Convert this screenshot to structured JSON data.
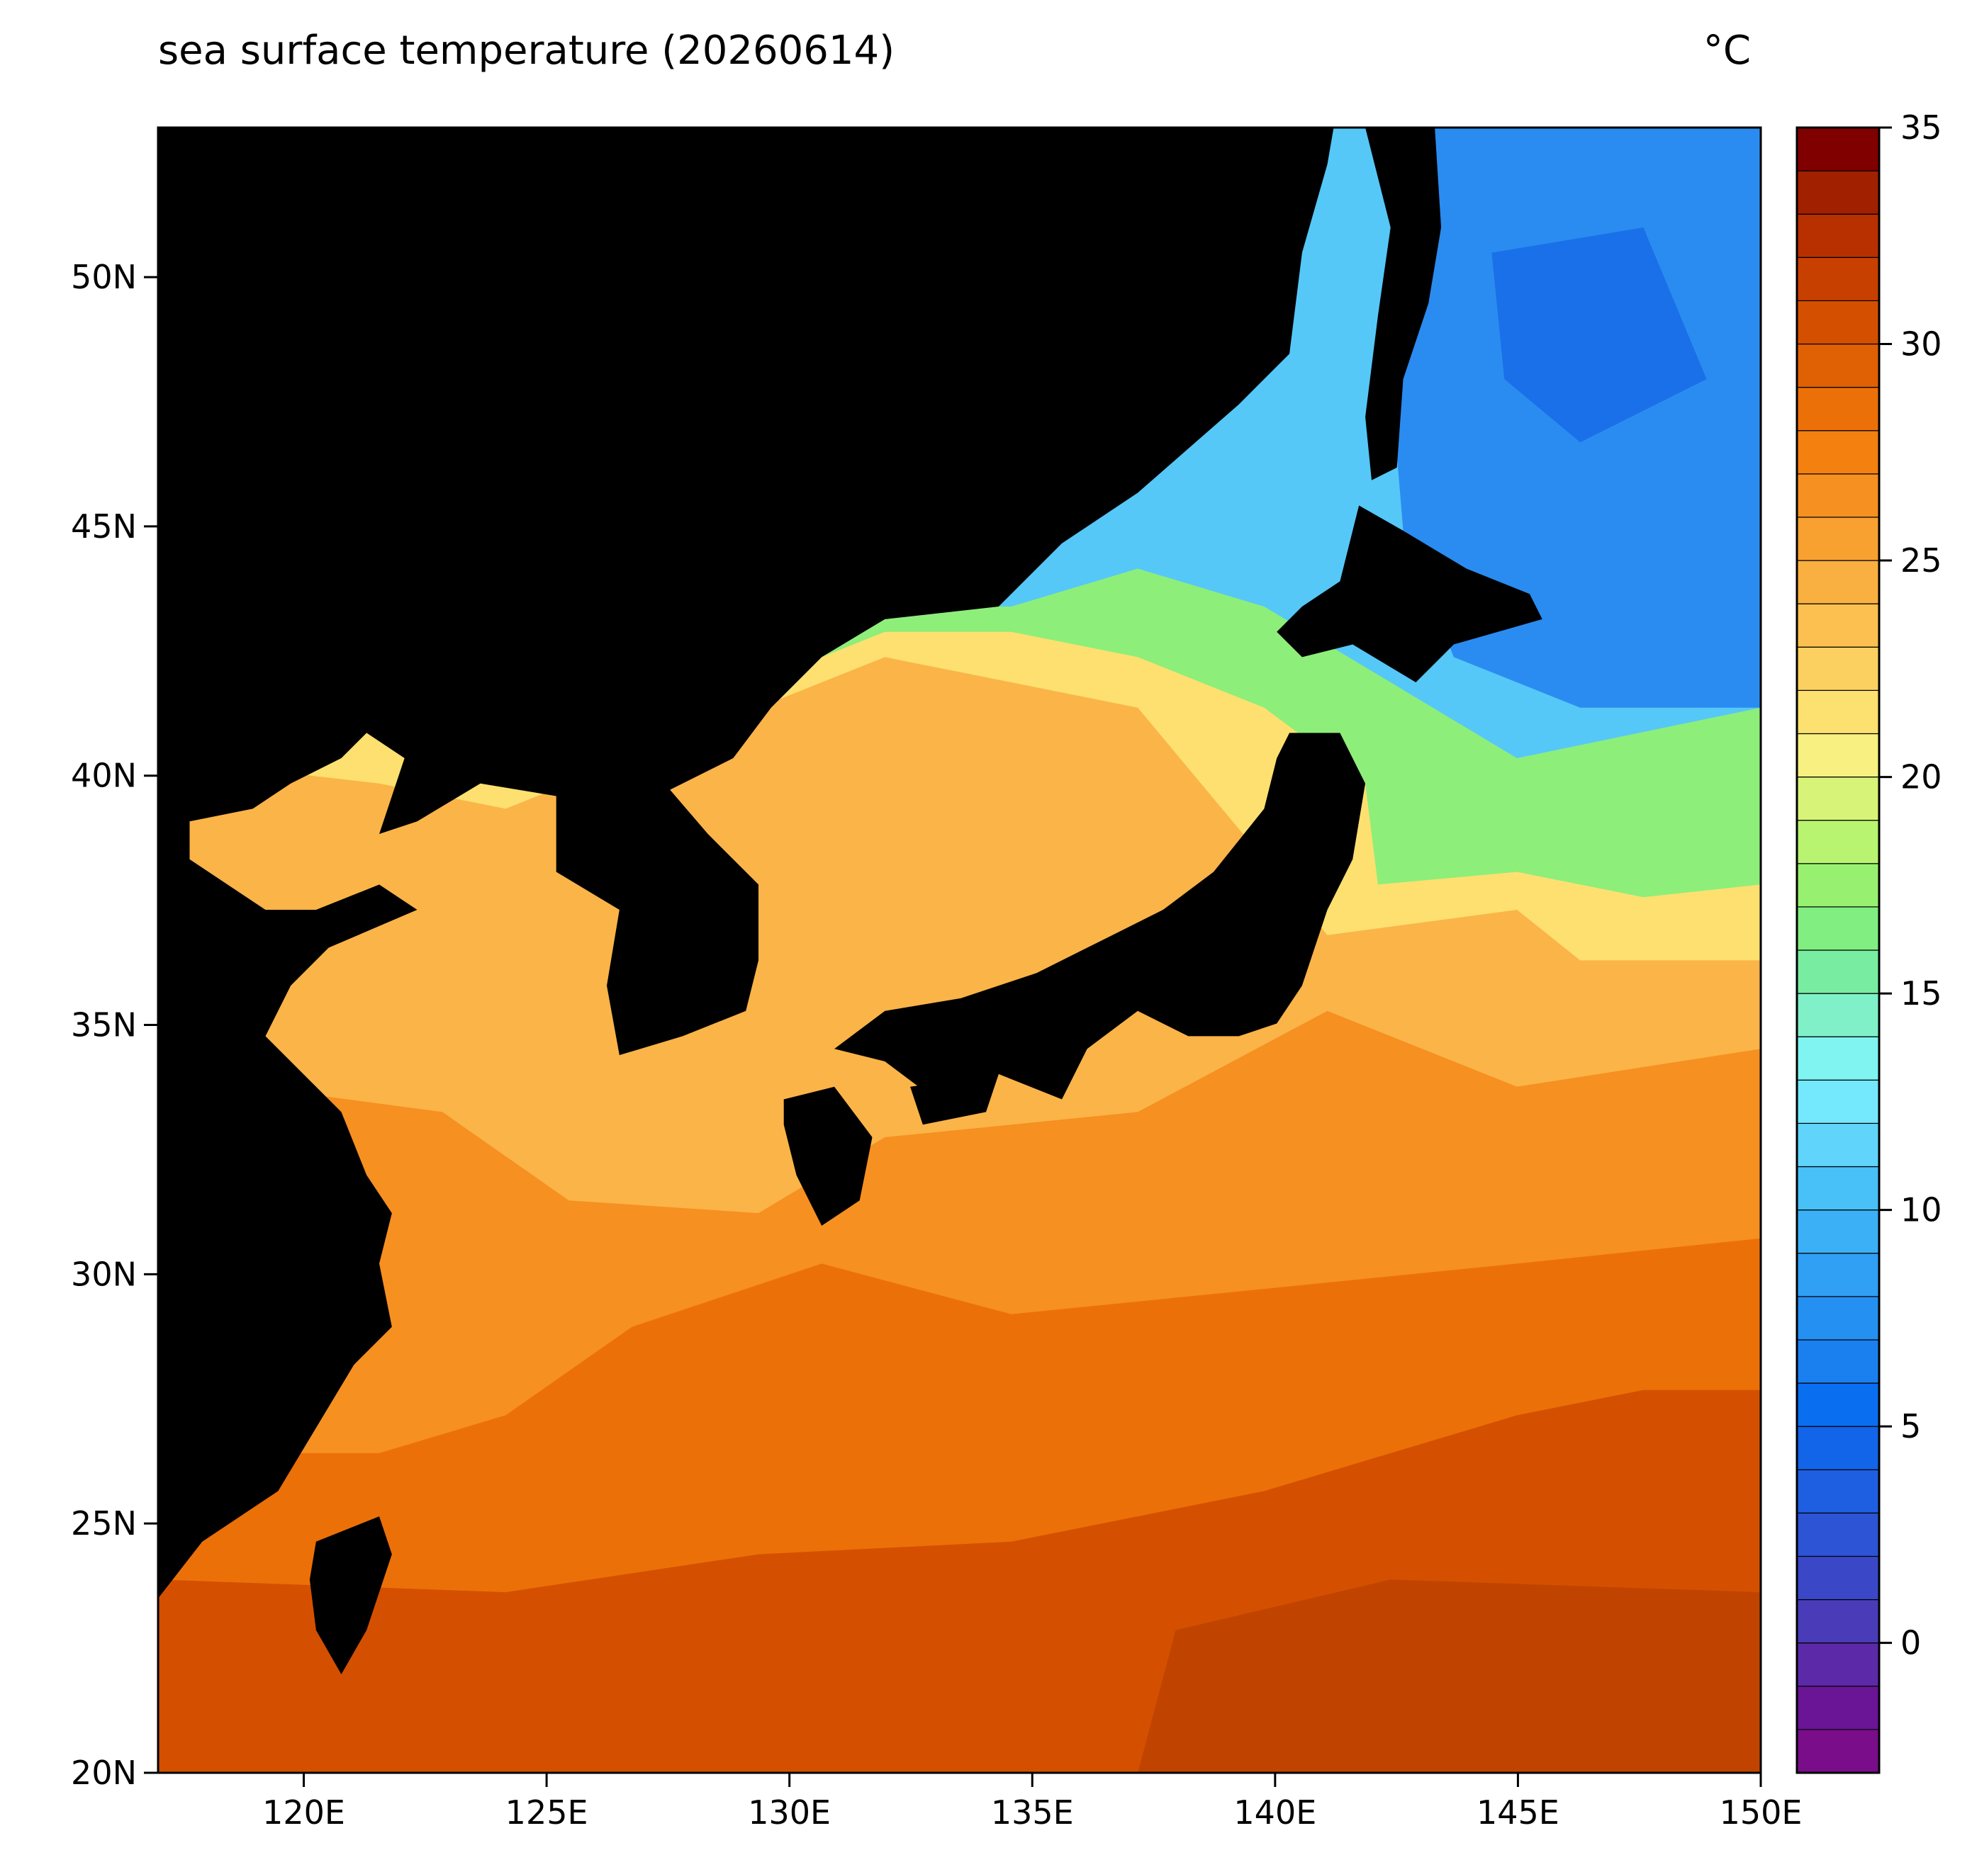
{
  "chart_data": {
    "type": "contour_map",
    "title": "sea surface temperature (20260614)",
    "colorbar_label": "°C",
    "xlim": [
      117,
      150
    ],
    "ylim": [
      20,
      53
    ],
    "xticks": [
      {
        "value": 120,
        "label": "120E"
      },
      {
        "value": 125,
        "label": "125E"
      },
      {
        "value": 130,
        "label": "130E"
      },
      {
        "value": 135,
        "label": "135E"
      },
      {
        "value": 140,
        "label": "140E"
      },
      {
        "value": 145,
        "label": "145E"
      },
      {
        "value": 150,
        "label": "150E"
      }
    ],
    "yticks": [
      {
        "value": 20,
        "label": "20N"
      },
      {
        "value": 25,
        "label": "25N"
      },
      {
        "value": 30,
        "label": "30N"
      },
      {
        "value": 35,
        "label": "35N"
      },
      {
        "value": 40,
        "label": "40N"
      },
      {
        "value": 45,
        "label": "45N"
      },
      {
        "value": 50,
        "label": "50N"
      }
    ],
    "colorbar": {
      "lim": [
        -3,
        35
      ],
      "ticks": [
        0,
        5,
        10,
        15,
        20,
        25,
        30,
        35
      ],
      "levels": [
        -3,
        -2,
        -1,
        0,
        1,
        2,
        3,
        4,
        5,
        6,
        7,
        8,
        9,
        10,
        11,
        12,
        13,
        14,
        15,
        16,
        17,
        18,
        19,
        20,
        21,
        22,
        23,
        24,
        25,
        26,
        27,
        28,
        29,
        30,
        31,
        32,
        33,
        34,
        35
      ],
      "colors": [
        "#7a0d8a",
        "#6a1496",
        "#5c2aa8",
        "#4a3cb8",
        "#3a48c8",
        "#2c54d4",
        "#1e5ee0",
        "#1264e8",
        "#0a6ef0",
        "#1a80f0",
        "#2490f2",
        "#30a0f4",
        "#3cb0f6",
        "#48c0f8",
        "#60d4fa",
        "#74e8fc",
        "#80f4f0",
        "#80f0c8",
        "#78eca0",
        "#80ee80",
        "#98f070",
        "#b8f470",
        "#d8f478",
        "#f8f080",
        "#fce070",
        "#fcd060",
        "#fbc050",
        "#f9b040",
        "#f8a030",
        "#f69020",
        "#f48010",
        "#ec7008",
        "#e06004",
        "#d45000",
        "#c84000",
        "#b83000",
        "#a02000",
        "#800000"
      ]
    }
  }
}
